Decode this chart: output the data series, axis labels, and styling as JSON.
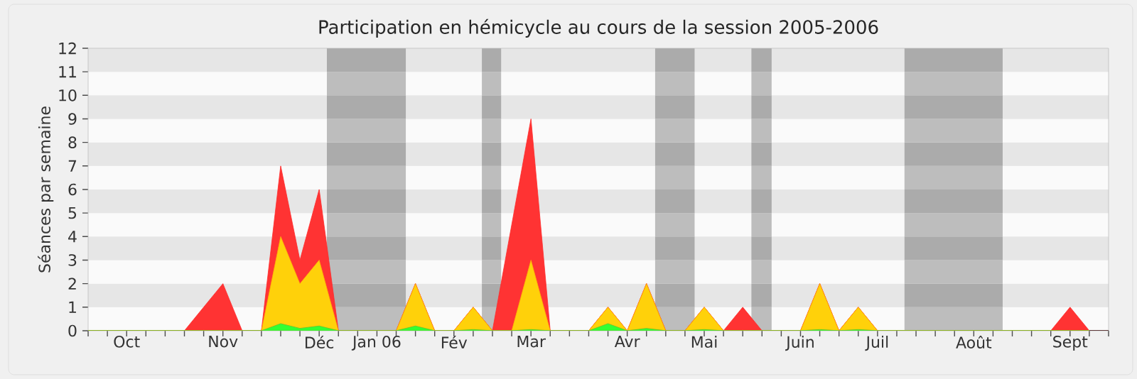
{
  "chart_data": {
    "type": "area",
    "title": "Participation en hémicycle au cours de la session 2005-2006",
    "ylabel": "Séances par semaine",
    "stacked": true,
    "categories": [
      null,
      null,
      "Oct",
      null,
      null,
      null,
      null,
      "Nov",
      null,
      null,
      null,
      null,
      "Déc",
      null,
      null,
      "Jan 06",
      null,
      null,
      null,
      "Fév",
      null,
      null,
      null,
      "Mar",
      null,
      null,
      null,
      null,
      "Avr",
      null,
      null,
      null,
      "Mai",
      null,
      null,
      null,
      null,
      "Juin",
      null,
      null,
      null,
      "Juil",
      null,
      null,
      null,
      null,
      "Août",
      null,
      null,
      null,
      null,
      "Sept",
      null
    ],
    "ylim": [
      0,
      12
    ],
    "yticks": [
      0,
      1,
      2,
      3,
      4,
      5,
      6,
      7,
      8,
      9,
      10,
      11,
      12
    ],
    "series": [
      {
        "color": "#33ff33",
        "values": [
          0,
          0,
          0,
          0,
          0,
          0,
          0,
          0,
          0,
          0,
          0.3,
          0.1,
          0.2,
          0,
          0,
          0,
          0,
          0.2,
          0,
          0,
          0.05,
          0,
          0,
          0.05,
          0,
          0,
          0,
          0.3,
          0,
          0.1,
          0,
          0,
          0.05,
          0,
          0,
          0,
          0,
          0,
          0.05,
          0,
          0.05,
          0,
          0,
          0,
          0,
          0,
          0,
          0,
          0,
          0,
          0,
          0,
          0
        ]
      },
      {
        "color": "#ffd10a",
        "values": [
          0,
          0,
          0,
          0,
          0,
          0,
          0,
          0,
          0,
          0,
          3.7,
          1.9,
          2.8,
          0,
          0,
          0,
          0,
          1.8,
          0,
          0,
          0.95,
          0,
          0,
          2.95,
          0,
          0,
          0,
          0.7,
          0,
          1.9,
          0,
          0,
          0.95,
          0,
          0,
          0,
          0,
          0,
          1.95,
          0,
          0.95,
          0,
          0,
          0,
          0,
          0,
          0,
          0,
          0,
          0,
          0,
          0,
          0
        ]
      },
      {
        "color": "#ff3333",
        "values": [
          0,
          0,
          0,
          0,
          0,
          0,
          1,
          2,
          0,
          0,
          3,
          1,
          3,
          0,
          0,
          0,
          0,
          0,
          0,
          0,
          0,
          0,
          4.5,
          6,
          0,
          0,
          0,
          0,
          0,
          0,
          0,
          0,
          0,
          0,
          1,
          0,
          0,
          0,
          0,
          0,
          0,
          0,
          0,
          0,
          0,
          0,
          0,
          0,
          0,
          0,
          0,
          1,
          0
        ]
      }
    ]
  }
}
